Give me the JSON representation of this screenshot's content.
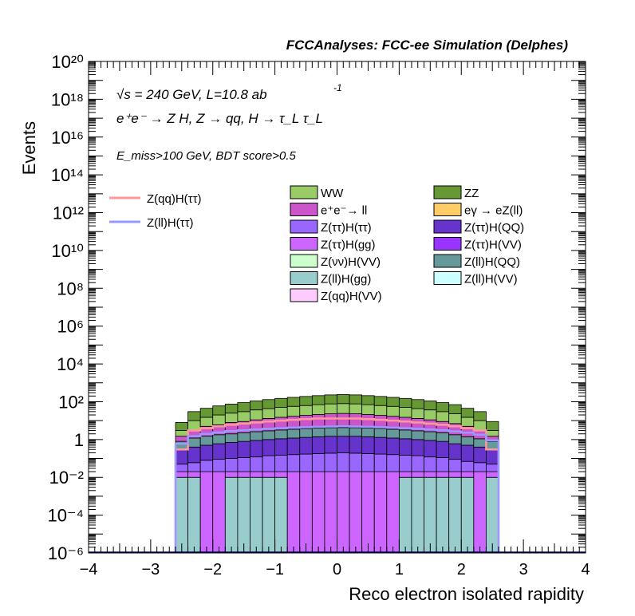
{
  "header": {
    "title": "FCCAnalyses: FCC-ee Simulation (Delphes)"
  },
  "annotations": {
    "energy": "√s = 240 GeV, L=10.8 ab",
    "energy_exp": "-1",
    "process": "e⁺e⁻ → Z H, Z → qq, H → τ_L τ_L",
    "selection": "E_miss>100 GeV, BDT score>0.5"
  },
  "chart_data": {
    "type": "bar",
    "xlabel": "Reco electron isolated rapidity",
    "ylabel": "Events",
    "xlim": [
      -4,
      4
    ],
    "ylim": [
      1e-06,
      1e+20
    ],
    "yscale": "log",
    "grid": false,
    "legend_placement": "top-center",
    "x_ticks": [
      "−4",
      "−3",
      "−2",
      "−1",
      "0",
      "1",
      "2",
      "3",
      "4"
    ],
    "y_ticks": [
      "10⁻⁶",
      "10⁻⁴",
      "10⁻²",
      "1",
      "10²",
      "10⁴",
      "10⁶",
      "10⁸",
      "10¹⁰",
      "10¹²",
      "10¹⁴",
      "10¹⁶",
      "10¹⁸",
      "10²⁰"
    ],
    "bin_edges": [
      -2.6,
      -2.4,
      -2.2,
      -2.0,
      -1.8,
      -1.6,
      -1.4,
      -1.2,
      -1.0,
      -0.8,
      -0.6,
      -0.4,
      -0.2,
      0.0,
      0.2,
      0.4,
      0.6,
      0.8,
      1.0,
      1.2,
      1.4,
      1.6,
      1.8,
      2.0,
      2.2,
      2.4,
      2.6
    ],
    "stack_totals": [
      8,
      30,
      45,
      60,
      75,
      90,
      110,
      130,
      150,
      170,
      190,
      210,
      230,
      240,
      230,
      210,
      190,
      170,
      150,
      130,
      110,
      90,
      70,
      45,
      30,
      9
    ],
    "stack_bands": [
      {
        "name": "Z(ll)H(gg)",
        "color": "#99cccc",
        "values": [
          0.01,
          0.01,
          1e-06,
          1e-06,
          0.01,
          0.01,
          0.01,
          0.01,
          0.01,
          1e-06,
          1e-06,
          1e-06,
          1e-06,
          1e-06,
          1e-06,
          1e-06,
          1e-06,
          1e-06,
          0.01,
          0.01,
          0.01,
          0.01,
          0.01,
          0.01,
          1e-06,
          0.01
        ]
      },
      {
        "name": "Z(ττ)H(gg)",
        "color": "#cc66ff",
        "values": [
          0.02,
          0.02,
          0.02,
          0.02,
          0.02,
          0.02,
          0.02,
          0.02,
          0.02,
          0.02,
          0.02,
          0.02,
          0.02,
          0.02,
          0.02,
          0.02,
          0.02,
          0.02,
          0.02,
          0.02,
          0.02,
          0.02,
          0.02,
          0.02,
          0.02,
          0.02
        ]
      },
      {
        "name": "Z(ττ)H(ττ)",
        "color": "#9966ff",
        "values": [
          0.05,
          0.06,
          0.08,
          0.09,
          0.1,
          0.11,
          0.12,
          0.14,
          0.15,
          0.16,
          0.17,
          0.18,
          0.19,
          0.2,
          0.19,
          0.18,
          0.17,
          0.16,
          0.15,
          0.14,
          0.12,
          0.11,
          0.09,
          0.07,
          0.06,
          0.05
        ]
      },
      {
        "name": "Z(ττ)H(QQ)",
        "color": "#6633cc",
        "values": [
          0.3,
          0.4,
          0.5,
          0.6,
          0.7,
          0.8,
          0.9,
          1,
          1.1,
          1.2,
          1.3,
          1.4,
          1.5,
          1.5,
          1.5,
          1.4,
          1.3,
          1.2,
          1.1,
          1,
          0.9,
          0.8,
          0.6,
          0.5,
          0.4,
          0.3
        ]
      },
      {
        "name": "Z(ll)H(QQ)",
        "color": "#669999",
        "values": [
          0.8,
          1.2,
          1.5,
          1.8,
          2,
          2.3,
          2.6,
          2.9,
          3.2,
          3.5,
          3.8,
          4,
          4.2,
          4.3,
          4.2,
          4,
          3.8,
          3.5,
          3.2,
          2.9,
          2.6,
          2.3,
          1.8,
          1.4,
          1.1,
          0.8
        ]
      },
      {
        "name": "e⁺e⁻→ ll",
        "color": "#cc55cc",
        "values": [
          1.5,
          3,
          5,
          6,
          8,
          9,
          11,
          13,
          15,
          17,
          19,
          21,
          23,
          24,
          23,
          21,
          19,
          17,
          15,
          13,
          11,
          9,
          7,
          5,
          3,
          1.5
        ]
      },
      {
        "name": "WW",
        "color": "#99cc66",
        "values": [
          3,
          10,
          15,
          20,
          25,
          30,
          37,
          43,
          50,
          57,
          63,
          70,
          77,
          80,
          77,
          70,
          63,
          57,
          50,
          43,
          37,
          30,
          23,
          15,
          10,
          3
        ]
      },
      {
        "name": "ZZ",
        "color": "#669933",
        "values": [
          8,
          30,
          45,
          60,
          75,
          90,
          110,
          130,
          150,
          170,
          190,
          210,
          230,
          240,
          230,
          210,
          190,
          170,
          150,
          130,
          110,
          90,
          70,
          45,
          30,
          9
        ]
      }
    ],
    "step_lines": [
      {
        "name": "Z(qq)H(ττ)",
        "color": "#ff9999",
        "values": [
          0.3,
          3,
          4,
          5,
          6,
          7,
          8,
          9,
          10,
          11,
          12,
          13,
          13,
          13,
          13,
          12,
          11,
          10,
          9,
          8,
          7,
          6,
          5,
          4,
          3,
          0.3
        ]
      },
      {
        "name": "Z(ll)H(ττ)",
        "color": "#9999ff",
        "values": [
          0.6,
          1.5,
          2,
          2.4,
          2.8,
          3.1,
          3.4,
          3.7,
          4,
          4.3,
          4.5,
          4.7,
          4.9,
          5,
          4.9,
          4.7,
          4.5,
          4.3,
          4,
          3.7,
          3.4,
          3.1,
          2.7,
          2.3,
          1.8,
          0.9
        ]
      }
    ],
    "legend": {
      "lines": [
        {
          "label": "Z(qq)H(ττ)",
          "color": "#ff9999"
        },
        {
          "label": "Z(ll)H(ττ)",
          "color": "#9999ff"
        }
      ],
      "boxes": [
        {
          "label": "WW",
          "color": "#99cc66"
        },
        {
          "label": "ZZ",
          "color": "#669933"
        },
        {
          "label": "e⁺e⁻→ ll",
          "color": "#cc55cc"
        },
        {
          "label": "eγ → eZ(ll)",
          "color": "#ffcc66"
        },
        {
          "label": "Z(ττ)H(ττ)",
          "color": "#9966ff"
        },
        {
          "label": "Z(ττ)H(QQ)",
          "color": "#6633cc"
        },
        {
          "label": "Z(ττ)H(gg)",
          "color": "#cc66ff"
        },
        {
          "label": "Z(ττ)H(VV)",
          "color": "#9933ff"
        },
        {
          "label": "Z(νν)H(VV)",
          "color": "#ccffcc"
        },
        {
          "label": "Z(ll)H(QQ)",
          "color": "#669999"
        },
        {
          "label": "Z(ll)H(gg)",
          "color": "#99cccc"
        },
        {
          "label": "Z(ll)H(VV)",
          "color": "#ccffff"
        },
        {
          "label": "Z(qq)H(VV)",
          "color": "#ffccff"
        }
      ]
    }
  }
}
